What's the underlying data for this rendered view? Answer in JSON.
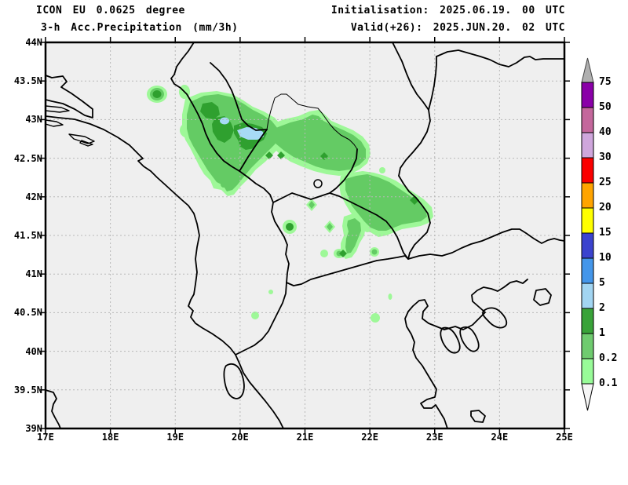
{
  "header": {
    "model_line": "ICON EU 0.0625 degree",
    "param_line": "3-h Acc.Precipitation (mm/3h)",
    "init_line": "Initialisation: 2025.06.19. 00 UTC",
    "valid_line": "Valid(+26): 2025.JUN.20. 02 UTC"
  },
  "axes": {
    "lat_labels": [
      "44N",
      "43.5N",
      "43N",
      "42.5N",
      "42N",
      "41.5N",
      "41N",
      "40.5N",
      "40N",
      "39.5N",
      "39N"
    ],
    "lon_labels": [
      "17E",
      "18E",
      "19E",
      "20E",
      "21E",
      "22E",
      "23E",
      "24E",
      "25E"
    ],
    "lat_range": [
      44,
      39
    ],
    "lon_range": [
      17,
      25
    ]
  },
  "legend": {
    "labels": [
      "75",
      "50",
      "40",
      "30",
      "25",
      "20",
      "15",
      "10",
      "5",
      "2",
      "1",
      "0.2",
      "0.1"
    ],
    "colors": [
      "#8A00A8",
      "#C4679C",
      "#CFA6DC",
      "#FA0000",
      "#FFA400",
      "#FFFF00",
      "#3B43CE",
      "#4496EA",
      "#A2D5F2",
      "#39A339",
      "#6FCB6F",
      "#98FB98"
    ],
    "arrow_top_color": "#AFAFAF",
    "arrow_bottom_color": "#F5F5F5"
  },
  "map": {
    "background": "#EFEFEF",
    "grid_color": "#B8B8B8",
    "outline_color": "#000000"
  },
  "precip_colors": {
    "light_green": "#9EF898",
    "medium_green": "#64CB64",
    "dark_green": "#2FA02F",
    "light_blue": "#A7DAF6"
  }
}
